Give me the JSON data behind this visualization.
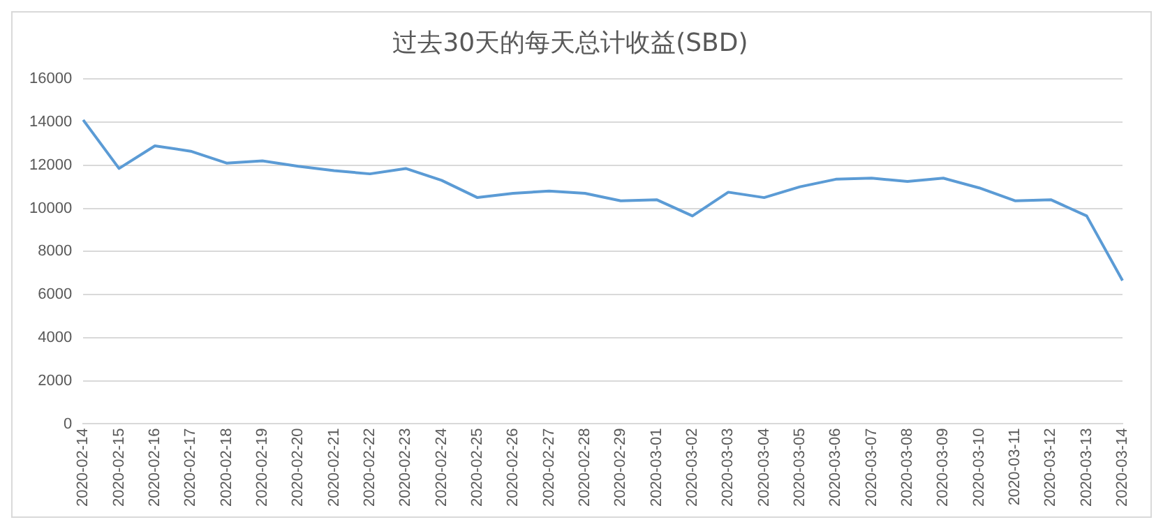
{
  "chart_data": {
    "type": "line",
    "title": "过去30天的每天总计收益(SBD)",
    "categories": [
      "2020-02-14",
      "2020-02-15",
      "2020-02-16",
      "2020-02-17",
      "2020-02-18",
      "2020-02-19",
      "2020-02-20",
      "2020-02-21",
      "2020-02-22",
      "2020-02-23",
      "2020-02-24",
      "2020-02-25",
      "2020-02-26",
      "2020-02-27",
      "2020-02-28",
      "2020-02-29",
      "2020-03-01",
      "2020-03-02",
      "2020-03-03",
      "2020-03-04",
      "2020-03-05",
      "2020-03-06",
      "2020-03-07",
      "2020-03-08",
      "2020-03-09",
      "2020-03-10",
      "2020-03-11",
      "2020-03-12",
      "2020-03-13",
      "2020-03-14"
    ],
    "values": [
      14100,
      11850,
      12900,
      12650,
      12100,
      12200,
      11950,
      11750,
      11600,
      11850,
      11300,
      10500,
      10700,
      10800,
      10700,
      10350,
      10400,
      9650,
      10750,
      10500,
      11000,
      11350,
      11400,
      11250,
      11400,
      10950,
      10350,
      10400,
      9650,
      6650
    ],
    "color": "#5b9bd5",
    "ylim": [
      0,
      16000
    ],
    "yticks": [
      0,
      2000,
      4000,
      6000,
      8000,
      10000,
      12000,
      14000,
      16000
    ],
    "grid": "y",
    "legend": false,
    "marker": "none",
    "line_style": "solid"
  }
}
